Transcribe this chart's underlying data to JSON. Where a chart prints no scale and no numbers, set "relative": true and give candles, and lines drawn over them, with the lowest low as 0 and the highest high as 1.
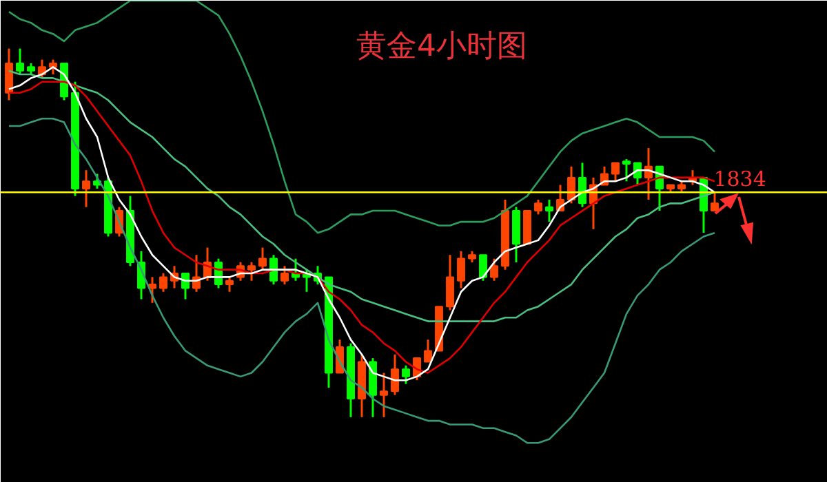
{
  "chart_data": {
    "type": "candlestick",
    "title": "黄金4小时图",
    "relative": true,
    "categories": [
      null,
      null,
      null,
      null,
      null,
      null,
      null,
      null,
      null,
      null,
      null,
      null,
      null,
      null,
      null,
      null,
      null,
      null,
      null,
      null,
      null,
      null,
      null,
      null,
      null,
      null,
      null,
      null,
      null,
      null,
      null,
      null,
      null,
      null,
      null,
      null,
      null,
      null,
      null,
      null,
      null,
      null,
      null,
      null,
      null,
      null,
      null,
      null,
      null,
      null,
      null,
      null,
      null,
      null,
      null,
      null,
      null,
      null,
      null,
      null,
      null,
      null,
      null,
      null,
      null
    ],
    "ohlc": [
      [
        0.88,
        1.0,
        0.86,
        0.96
      ],
      [
        0.96,
        1.0,
        0.93,
        0.94
      ],
      [
        0.95,
        0.96,
        0.93,
        0.94
      ],
      [
        0.93,
        0.97,
        0.92,
        0.95
      ],
      [
        0.95,
        0.97,
        0.93,
        0.96
      ],
      [
        0.96,
        0.96,
        0.86,
        0.87
      ],
      [
        0.88,
        0.91,
        0.6,
        0.62
      ],
      [
        0.62,
        0.67,
        0.57,
        0.64
      ],
      [
        0.64,
        0.66,
        0.62,
        0.63
      ],
      [
        0.64,
        0.65,
        0.49,
        0.5
      ],
      [
        0.5,
        0.57,
        0.49,
        0.56
      ],
      [
        0.56,
        0.6,
        0.41,
        0.42
      ],
      [
        0.42,
        0.45,
        0.32,
        0.35
      ],
      [
        0.35,
        0.38,
        0.31,
        0.36
      ],
      [
        0.35,
        0.39,
        0.34,
        0.38
      ],
      [
        0.37,
        0.41,
        0.35,
        0.39
      ],
      [
        0.39,
        0.39,
        0.32,
        0.35
      ],
      [
        0.35,
        0.44,
        0.34,
        0.38
      ],
      [
        0.38,
        0.46,
        0.37,
        0.42
      ],
      [
        0.42,
        0.43,
        0.35,
        0.36
      ],
      [
        0.36,
        0.38,
        0.34,
        0.37
      ],
      [
        0.38,
        0.42,
        0.37,
        0.41
      ],
      [
        0.4,
        0.42,
        0.37,
        0.41
      ],
      [
        0.41,
        0.46,
        0.4,
        0.43
      ],
      [
        0.43,
        0.44,
        0.36,
        0.37
      ],
      [
        0.37,
        0.41,
        0.36,
        0.39
      ],
      [
        0.39,
        0.43,
        0.37,
        0.38
      ],
      [
        0.39,
        0.4,
        0.34,
        0.38
      ],
      [
        0.39,
        0.41,
        0.36,
        0.37
      ],
      [
        0.38,
        0.38,
        0.08,
        0.12
      ],
      [
        0.12,
        0.21,
        0.12,
        0.19
      ],
      [
        0.19,
        0.2,
        0.0,
        0.05
      ],
      [
        0.05,
        0.17,
        0.0,
        0.15
      ],
      [
        0.15,
        0.16,
        0.0,
        0.06
      ],
      [
        0.06,
        0.12,
        0.0,
        0.07
      ],
      [
        0.07,
        0.17,
        0.06,
        0.13
      ],
      [
        0.13,
        0.14,
        0.09,
        0.11
      ],
      [
        0.11,
        0.16,
        0.1,
        0.16
      ],
      [
        0.15,
        0.21,
        0.15,
        0.18
      ],
      [
        0.18,
        0.3,
        0.18,
        0.3
      ],
      [
        0.3,
        0.44,
        0.29,
        0.38
      ],
      [
        0.37,
        0.45,
        0.35,
        0.43
      ],
      [
        0.43,
        0.45,
        0.42,
        0.44
      ],
      [
        0.44,
        0.44,
        0.37,
        0.38
      ],
      [
        0.38,
        0.43,
        0.37,
        0.41
      ],
      [
        0.41,
        0.59,
        0.4,
        0.56
      ],
      [
        0.56,
        0.57,
        0.42,
        0.47
      ],
      [
        0.47,
        0.56,
        0.47,
        0.56
      ],
      [
        0.56,
        0.59,
        0.55,
        0.58
      ],
      [
        0.57,
        0.59,
        0.53,
        0.56
      ],
      [
        0.56,
        0.63,
        0.56,
        0.59
      ],
      [
        0.59,
        0.68,
        0.58,
        0.65
      ],
      [
        0.65,
        0.69,
        0.57,
        0.58
      ],
      [
        0.58,
        0.65,
        0.51,
        0.63
      ],
      [
        0.63,
        0.68,
        0.63,
        0.66
      ],
      [
        0.66,
        0.69,
        0.64,
        0.69
      ],
      [
        0.694,
        0.7,
        0.64,
        0.687
      ],
      [
        0.69,
        0.69,
        0.63,
        0.65
      ],
      [
        0.65,
        0.73,
        0.59,
        0.68
      ],
      [
        0.68,
        0.68,
        0.56,
        0.62
      ],
      [
        0.62,
        0.63,
        0.61,
        0.63
      ],
      [
        0.62,
        0.64,
        0.61,
        0.63
      ],
      [
        0.64,
        0.67,
        0.63,
        0.65
      ],
      [
        0.65,
        0.65,
        0.5,
        0.56
      ],
      [
        0.56,
        0.61,
        0.56,
        0.58
      ]
    ],
    "colors": [
      "#ff4500",
      "#00ff00",
      "#00ff00",
      "#ff4500",
      "#ff4500",
      "#00ff00",
      "#00ff00",
      "#ff4500",
      "#00ff00",
      "#00ff00",
      "#ff4500",
      "#00ff00",
      "#00ff00",
      "#ff4500",
      "#ff4500",
      "#ff4500",
      "#00ff00",
      "#ff4500",
      "#ff4500",
      "#00ff00",
      "#ff4500",
      "#ff4500",
      "#ff4500",
      "#ff4500",
      "#00ff00",
      "#ff4500",
      "#00ff00",
      "#00ff00",
      "#00ff00",
      "#00ff00",
      "#ff4500",
      "#00ff00",
      "#ff4500",
      "#00ff00",
      "#ff4500",
      "#ff4500",
      "#00ff00",
      "#ff4500",
      "#ff4500",
      "#ff4500",
      "#ff4500",
      "#ff4500",
      "#ff4500",
      "#00ff00",
      "#ff4500",
      "#ff4500",
      "#00ff00",
      "#ff4500",
      "#ff4500",
      "#00ff00",
      "#ff4500",
      "#ff4500",
      "#00ff00",
      "#ff4500",
      "#ff4500",
      "#ff4500",
      "#00ff00",
      "#00ff00",
      "#ff4500",
      "#00ff00",
      "#ff4500",
      "#ff4500",
      "#ff4500",
      "#00ff00",
      "#ff4500"
    ],
    "series": [
      {
        "type": "line",
        "color": "#2e9e5e",
        "values": [
          1.1,
          1.08,
          1.07,
          1.05,
          1.04,
          1.02,
          1.05,
          1.06,
          1.07,
          1.09,
          1.11,
          1.13,
          null,
          null,
          null,
          null,
          null,
          1.13,
          1.11,
          1.09,
          1.04,
          0.98,
          0.91,
          0.83,
          0.74,
          0.64,
          0.55,
          0.53,
          0.5,
          0.51,
          0.53,
          0.55,
          0.55,
          0.56,
          0.56,
          0.56,
          0.55,
          0.54,
          0.53,
          0.52,
          0.52,
          0.53,
          0.53,
          0.53,
          0.54,
          0.56,
          0.58,
          0.6,
          0.64,
          0.68,
          0.72,
          0.75,
          0.77,
          0.78,
          0.79,
          0.8,
          0.81,
          0.8,
          0.78,
          0.76,
          0.76,
          0.76,
          0.76,
          0.75,
          0.72
        ]
      },
      {
        "type": "line",
        "color": "#4cc080",
        "values": [
          0.94,
          0.93,
          0.93,
          0.92,
          0.92,
          0.91,
          0.9,
          0.89,
          0.88,
          0.86,
          0.83,
          0.8,
          0.78,
          0.76,
          0.73,
          0.7,
          0.68,
          0.65,
          0.62,
          0.6,
          0.57,
          0.55,
          0.52,
          0.49,
          0.47,
          0.44,
          0.42,
          0.4,
          0.38,
          0.36,
          0.35,
          0.34,
          0.32,
          0.31,
          0.3,
          0.29,
          0.28,
          0.27,
          0.26,
          0.26,
          0.26,
          0.26,
          0.26,
          0.26,
          0.26,
          0.27,
          0.27,
          0.29,
          0.3,
          0.32,
          0.34,
          0.36,
          0.4,
          0.43,
          0.46,
          0.49,
          0.51,
          0.54,
          0.55,
          0.57,
          0.58,
          0.58,
          0.59,
          0.6,
          0.61
        ]
      },
      {
        "type": "line",
        "color": "#3a9a78",
        "values": [
          0.79,
          0.79,
          0.8,
          0.81,
          0.81,
          0.8,
          0.74,
          0.7,
          0.65,
          0.6,
          0.53,
          0.46,
          0.4,
          0.33,
          0.27,
          0.22,
          0.18,
          0.16,
          0.14,
          0.13,
          0.12,
          0.11,
          0.12,
          0.15,
          0.19,
          0.23,
          0.26,
          0.28,
          0.31,
          0.21,
          0.15,
          0.1,
          0.08,
          0.05,
          0.03,
          0.02,
          0.01,
          0.0,
          -0.01,
          -0.01,
          -0.02,
          -0.02,
          -0.02,
          -0.03,
          -0.03,
          -0.04,
          -0.05,
          -0.07,
          -0.07,
          -0.06,
          -0.03,
          0.0,
          0.04,
          0.08,
          0.12,
          0.2,
          0.28,
          0.33,
          0.36,
          0.4,
          0.42,
          0.45,
          0.47,
          0.49,
          0.5
        ]
      },
      {
        "type": "line",
        "color": "#e00000",
        "values": [
          0.88,
          0.88,
          0.89,
          0.91,
          0.91,
          0.91,
          0.9,
          0.87,
          0.83,
          0.79,
          0.75,
          0.71,
          0.64,
          0.56,
          0.5,
          0.46,
          0.44,
          0.42,
          0.41,
          0.4,
          0.4,
          0.4,
          0.39,
          0.39,
          0.4,
          0.4,
          0.39,
          0.39,
          0.38,
          0.34,
          0.32,
          0.29,
          0.25,
          0.23,
          0.2,
          0.18,
          0.15,
          0.13,
          0.12,
          0.14,
          0.16,
          0.19,
          0.23,
          0.27,
          0.31,
          0.34,
          0.38,
          0.42,
          0.45,
          0.48,
          0.52,
          0.54,
          0.56,
          0.58,
          0.6,
          0.61,
          0.62,
          0.63,
          0.64,
          0.65,
          0.65,
          0.65,
          0.65,
          0.65,
          0.64
        ]
      },
      {
        "type": "line",
        "color": "#ffffff",
        "values": [
          0.89,
          0.9,
          0.92,
          0.93,
          0.95,
          0.93,
          0.88,
          0.81,
          0.76,
          0.65,
          0.59,
          0.55,
          0.49,
          0.44,
          0.41,
          0.38,
          0.37,
          0.37,
          0.38,
          0.38,
          0.38,
          0.39,
          0.39,
          0.4,
          0.4,
          0.4,
          0.4,
          0.39,
          0.38,
          0.32,
          0.27,
          0.21,
          0.17,
          0.12,
          0.11,
          0.1,
          0.1,
          0.11,
          0.13,
          0.2,
          0.27,
          0.34,
          0.37,
          0.38,
          0.42,
          0.45,
          0.46,
          0.47,
          0.48,
          0.52,
          0.57,
          0.59,
          0.61,
          0.62,
          0.64,
          0.64,
          0.65,
          0.67,
          0.67,
          0.66,
          0.65,
          0.64,
          0.64,
          0.63,
          0.61
        ]
      }
    ],
    "ref_lines": [
      {
        "axis": "y",
        "value": 0.61,
        "color": "#ffff00"
      }
    ],
    "annotations": [
      "1834"
    ]
  }
}
